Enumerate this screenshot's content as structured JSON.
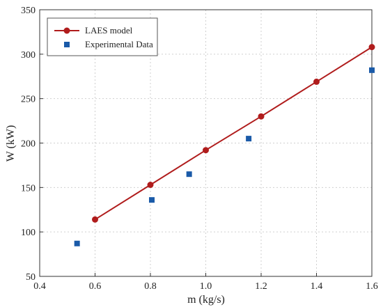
{
  "chart_data": {
    "type": "line",
    "xlabel": "m (kg/s)",
    "ylabel": "W (kW)",
    "xlim": [
      0.4,
      1.6
    ],
    "ylim": [
      50,
      350
    ],
    "xticks": [
      "0.4",
      "0.6",
      "0.8",
      "1.0",
      "1.2",
      "1.4",
      "1.6"
    ],
    "yticks": [
      "50",
      "100",
      "150",
      "200",
      "250",
      "300",
      "350"
    ],
    "grid": true,
    "legend_position": "top-left",
    "series": [
      {
        "name": "LAES model",
        "kind": "line-with-circles",
        "color": "#b01c1c",
        "x": [
          0.6,
          0.8,
          1.0,
          1.2,
          1.4,
          1.6
        ],
        "y": [
          114,
          153,
          192,
          230,
          269,
          308
        ]
      },
      {
        "name": "Experimental Data",
        "kind": "square-markers",
        "color": "#1a5aa8",
        "x": [
          0.535,
          0.805,
          0.94,
          1.155,
          1.6
        ],
        "y": [
          87,
          136,
          165,
          205,
          282
        ]
      }
    ]
  }
}
